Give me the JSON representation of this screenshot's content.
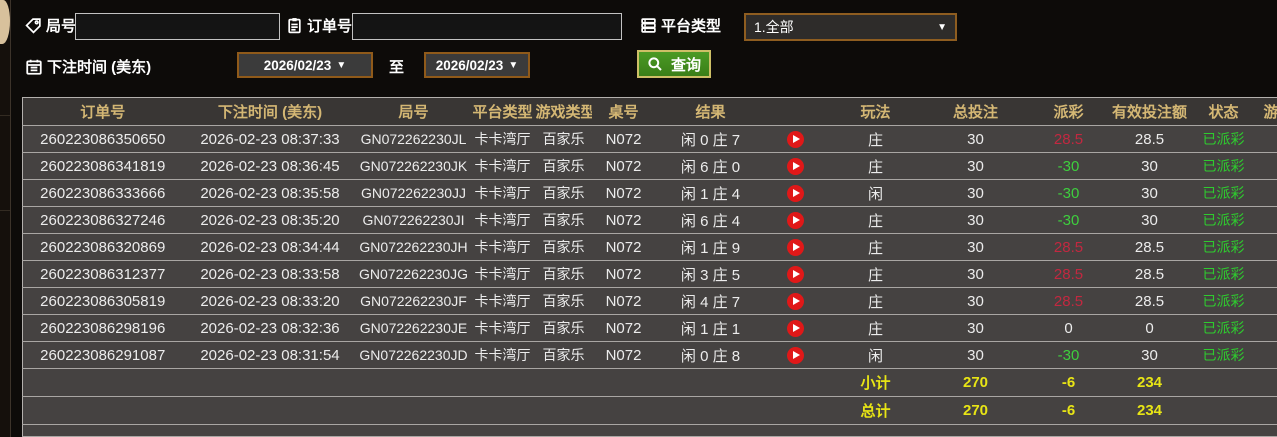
{
  "filters": {
    "round_label": "局号",
    "round_value": "",
    "order_label": "订单号",
    "order_value": "",
    "platform_label": "平台类型",
    "platform_value": "1.全部",
    "bet_time_label": "下注时间 (美东)",
    "date_from": "2026/02/23",
    "to_label": "至",
    "date_to": "2026/02/23",
    "query_label": "查询"
  },
  "table": {
    "headers": [
      "订单号",
      "下注时间 (美东)",
      "局号",
      "平台类型",
      "游戏类型",
      "桌号",
      "结果",
      "",
      "玩法",
      "总投注",
      "派彩",
      "有效投注额",
      "状态",
      "游"
    ],
    "rows": [
      {
        "order_no": "260223086350650",
        "bet_time": "2026-02-23 08:37:33",
        "round_no": "GN072262230JL",
        "platform": "卡卡湾厅",
        "game_type": "百家乐",
        "table_no": "N072",
        "result": "闲 0 庄 7",
        "play": "庄",
        "total_bet": "30",
        "payout": "28.5",
        "valid_bet": "28.5",
        "status": "已派彩"
      },
      {
        "order_no": "260223086341819",
        "bet_time": "2026-02-23 08:36:45",
        "round_no": "GN072262230JK",
        "platform": "卡卡湾厅",
        "game_type": "百家乐",
        "table_no": "N072",
        "result": "闲 6 庄 0",
        "play": "庄",
        "total_bet": "30",
        "payout": "-30",
        "valid_bet": "30",
        "status": "已派彩"
      },
      {
        "order_no": "260223086333666",
        "bet_time": "2026-02-23 08:35:58",
        "round_no": "GN072262230JJ",
        "platform": "卡卡湾厅",
        "game_type": "百家乐",
        "table_no": "N072",
        "result": "闲 1 庄 4",
        "play": "闲",
        "total_bet": "30",
        "payout": "-30",
        "valid_bet": "30",
        "status": "已派彩"
      },
      {
        "order_no": "260223086327246",
        "bet_time": "2026-02-23 08:35:20",
        "round_no": "GN072262230JI",
        "platform": "卡卡湾厅",
        "game_type": "百家乐",
        "table_no": "N072",
        "result": "闲 6 庄 4",
        "play": "庄",
        "total_bet": "30",
        "payout": "-30",
        "valid_bet": "30",
        "status": "已派彩"
      },
      {
        "order_no": "260223086320869",
        "bet_time": "2026-02-23 08:34:44",
        "round_no": "GN072262230JH",
        "platform": "卡卡湾厅",
        "game_type": "百家乐",
        "table_no": "N072",
        "result": "闲 1 庄 9",
        "play": "庄",
        "total_bet": "30",
        "payout": "28.5",
        "valid_bet": "28.5",
        "status": "已派彩"
      },
      {
        "order_no": "260223086312377",
        "bet_time": "2026-02-23 08:33:58",
        "round_no": "GN072262230JG",
        "platform": "卡卡湾厅",
        "game_type": "百家乐",
        "table_no": "N072",
        "result": "闲 3 庄 5",
        "play": "庄",
        "total_bet": "30",
        "payout": "28.5",
        "valid_bet": "28.5",
        "status": "已派彩"
      },
      {
        "order_no": "260223086305819",
        "bet_time": "2026-02-23 08:33:20",
        "round_no": "GN072262230JF",
        "platform": "卡卡湾厅",
        "game_type": "百家乐",
        "table_no": "N072",
        "result": "闲 4 庄 7",
        "play": "庄",
        "total_bet": "30",
        "payout": "28.5",
        "valid_bet": "28.5",
        "status": "已派彩"
      },
      {
        "order_no": "260223086298196",
        "bet_time": "2026-02-23 08:32:36",
        "round_no": "GN072262230JE",
        "platform": "卡卡湾厅",
        "game_type": "百家乐",
        "table_no": "N072",
        "result": "闲 1 庄 1",
        "play": "庄",
        "total_bet": "30",
        "payout": "0",
        "valid_bet": "0",
        "status": "已派彩"
      },
      {
        "order_no": "260223086291087",
        "bet_time": "2026-02-23 08:31:54",
        "round_no": "GN072262230JD",
        "platform": "卡卡湾厅",
        "game_type": "百家乐",
        "table_no": "N072",
        "result": "闲 0 庄 8",
        "play": "闲",
        "total_bet": "30",
        "payout": "-30",
        "valid_bet": "30",
        "status": "已派彩"
      }
    ],
    "subtotal": {
      "label": "小计",
      "total_bet": "270",
      "payout": "-6",
      "valid_bet": "234"
    },
    "total": {
      "label": "总计",
      "total_bet": "270",
      "payout": "-6",
      "valid_bet": "234"
    }
  },
  "colors": {
    "accent_gold": "#d4b774",
    "payout_positive": "#c22840",
    "payout_negative": "#3ecf3e",
    "status_green": "#2ecc2e",
    "summary_yellow": "#e8e515",
    "query_green": "#3e8d1d",
    "date_border": "#8f5a1a"
  }
}
